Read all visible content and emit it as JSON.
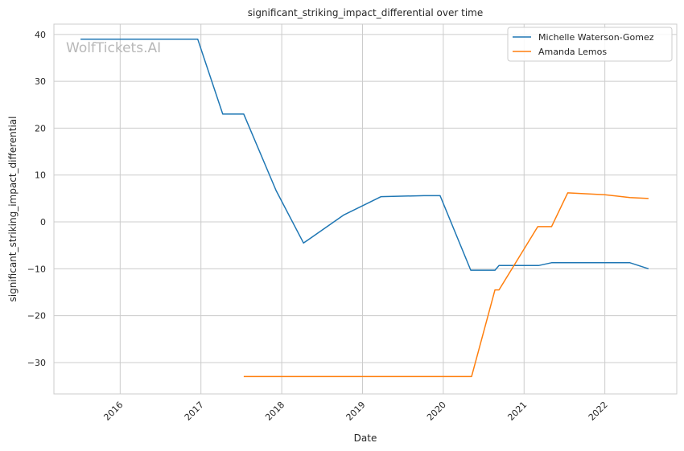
{
  "chart_data": {
    "type": "line",
    "title": "significant_striking_impact_differential over time",
    "xlabel": "Date",
    "ylabel": "significant_striking_impact_differential",
    "xlim": [
      2015.18,
      2022.89
    ],
    "ylim": [
      -36.7,
      42.2
    ],
    "xticks": [
      2016,
      2017,
      2018,
      2019,
      2020,
      2021,
      2022
    ],
    "xtick_labels": [
      "2016",
      "2017",
      "2018",
      "2019",
      "2020",
      "2021",
      "2022"
    ],
    "yticks": [
      40,
      30,
      20,
      10,
      0,
      -10,
      -20,
      -30
    ],
    "ytick_labels": [
      "40",
      "30",
      "20",
      "10",
      "0",
      "−10",
      "−20",
      "−30"
    ],
    "grid": true,
    "legend_position": "top-right",
    "watermark": "WolfTickets.AI",
    "series": [
      {
        "name": "Michelle Waterson-Gomez",
        "color": "#1f77b4",
        "x": [
          2015.51,
          2016.96,
          2017.27,
          2017.53,
          2017.93,
          2018.27,
          2018.77,
          2019.23,
          2019.76,
          2019.96,
          2020.34,
          2020.64,
          2020.69,
          2021.18,
          2021.34,
          2022.31,
          2022.54
        ],
        "y": [
          39,
          39,
          23,
          23,
          6.7,
          -4.5,
          1.5,
          5.4,
          5.6,
          5.6,
          -10.3,
          -10.3,
          -9.3,
          -9.3,
          -8.7,
          -8.7,
          -10
        ]
      },
      {
        "name": "Amanda Lemos",
        "color": "#ff7f0e",
        "x": [
          2017.53,
          2020.35,
          2020.64,
          2020.69,
          2021.17,
          2021.34,
          2021.54,
          2022.0,
          2022.31,
          2022.54
        ],
        "y": [
          -33,
          -33,
          -14.5,
          -14.5,
          -1,
          -1,
          6.2,
          5.8,
          5.2,
          5.0
        ]
      }
    ]
  }
}
